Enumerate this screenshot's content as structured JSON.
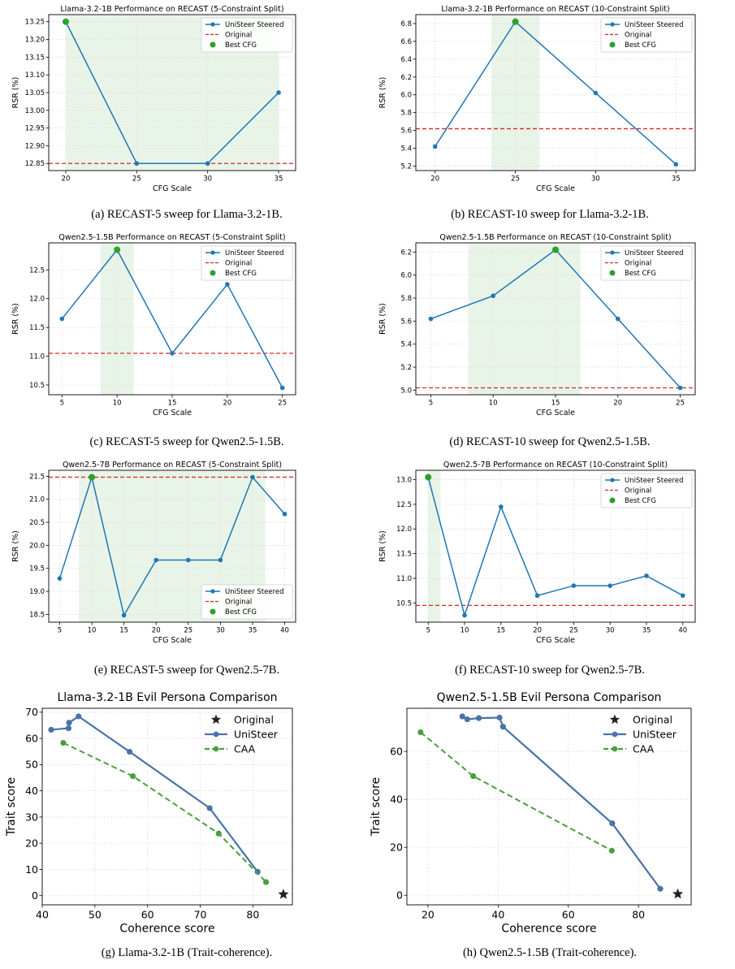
{
  "colors": {
    "unisteer": "#1f77b4",
    "original": "#d62728",
    "best": "#2ca02c",
    "band": "#e8f4e8",
    "persona_unisteer": "#4a73a8",
    "persona_caa": "#4a9e3c"
  },
  "captions": [
    "(a) RECAST-5 sweep for Llama-3.2-1B.",
    "(b) RECAST-10 sweep for Llama-3.2-1B.",
    "(c) RECAST-5 sweep for Qwen2.5-1.5B.",
    "(d) RECAST-10 sweep for Qwen2.5-1.5B.",
    "(e) RECAST-5 sweep for Qwen2.5-7B.",
    "(f) RECAST-10 sweep for Qwen2.5-7B.",
    "(g) Llama-3.2-1B (Trait-coherence).",
    "(h) Qwen2.5-1.5B (Trait-coherence)."
  ],
  "chart_data": [
    {
      "type": "line",
      "title": "Llama-3.2-1B Performance on RECAST (5-Constraint Split)",
      "xlabel": "CFG Scale",
      "ylabel": "RSR (%)",
      "x": [
        20,
        25,
        30,
        35
      ],
      "series": [
        {
          "name": "UniSteer Steered",
          "values": [
            13.25,
            12.85,
            12.85,
            13.05
          ]
        }
      ],
      "original": 12.85,
      "original_label": "Original",
      "best": {
        "label": "Best CFG",
        "x": 20,
        "y": 13.25
      },
      "band": [
        20,
        35
      ],
      "xlim": [
        18.8,
        36.2
      ],
      "ylim": [
        12.83,
        13.27
      ],
      "xticks": [
        20,
        25,
        30,
        35
      ],
      "yticks": [
        "12.85",
        "12.90",
        "12.95",
        "13.00",
        "13.05",
        "13.10",
        "13.15",
        "13.20",
        "13.25"
      ],
      "legend": "top-right",
      "grid": true
    },
    {
      "type": "line",
      "title": "Llama-3.2-1B Performance on RECAST (10-Constraint Split)",
      "xlabel": "CFG Scale",
      "ylabel": "RSR (%)",
      "x": [
        20,
        25,
        30,
        35
      ],
      "series": [
        {
          "name": "UniSteer Steered",
          "values": [
            5.42,
            6.82,
            6.02,
            5.22
          ]
        }
      ],
      "original": 5.62,
      "original_label": "Original",
      "best": {
        "label": "Best CFG",
        "x": 25,
        "y": 6.82
      },
      "band": [
        23.5,
        26.5
      ],
      "xlim": [
        18.8,
        36.2
      ],
      "ylim": [
        5.15,
        6.9
      ],
      "xticks": [
        20,
        25,
        30,
        35
      ],
      "yticks": [
        "5.2",
        "5.4",
        "5.6",
        "5.8",
        "6.0",
        "6.2",
        "6.4",
        "6.6",
        "6.8"
      ],
      "legend": "top-right",
      "grid": true
    },
    {
      "type": "line",
      "title": "Qwen2.5-1.5B Performance on RECAST (5-Constraint Split)",
      "xlabel": "CFG Scale",
      "ylabel": "RSR (%)",
      "x": [
        5,
        10,
        15,
        20,
        25
      ],
      "series": [
        {
          "name": "UniSteer Steered",
          "values": [
            11.65,
            12.85,
            11.05,
            12.25,
            10.45
          ]
        }
      ],
      "original": 11.05,
      "original_label": "Original",
      "best": {
        "label": "Best CFG",
        "x": 10,
        "y": 12.85
      },
      "band": [
        8.5,
        11.5
      ],
      "xlim": [
        3.8,
        26.2
      ],
      "ylim": [
        10.33,
        12.97
      ],
      "xticks": [
        5,
        10,
        15,
        20,
        25
      ],
      "yticks": [
        "10.5",
        "11.0",
        "11.5",
        "12.0",
        "12.5"
      ],
      "legend": "top-right",
      "grid": true
    },
    {
      "type": "line",
      "title": "Qwen2.5-1.5B Performance on RECAST (10-Constraint Split)",
      "xlabel": "CFG Scale",
      "ylabel": "RSR (%)",
      "x": [
        5,
        10,
        15,
        20,
        25
      ],
      "series": [
        {
          "name": "UniSteer Steered",
          "values": [
            5.62,
            5.82,
            6.22,
            5.62,
            5.02
          ]
        }
      ],
      "original": 5.02,
      "original_label": "Original",
      "best": {
        "label": "Best CFG",
        "x": 15,
        "y": 6.22
      },
      "band": [
        8,
        17
      ],
      "xlim": [
        3.8,
        26.2
      ],
      "ylim": [
        4.96,
        6.28
      ],
      "xticks": [
        5,
        10,
        15,
        20,
        25
      ],
      "yticks": [
        "5.0",
        "5.2",
        "5.4",
        "5.6",
        "5.8",
        "6.0",
        "6.2"
      ],
      "legend": "top-right",
      "grid": true
    },
    {
      "type": "line",
      "title": "Qwen2.5-7B Performance on RECAST (5-Constraint Split)",
      "xlabel": "CFG Scale",
      "ylabel": "RSR (%)",
      "x": [
        5,
        10,
        15,
        20,
        25,
        30,
        35,
        40
      ],
      "series": [
        {
          "name": "UniSteer Steered",
          "values": [
            19.28,
            21.48,
            18.48,
            19.68,
            19.68,
            19.68,
            21.48,
            20.68
          ]
        }
      ],
      "original": 21.48,
      "original_label": "Original",
      "best": {
        "label": "Best CFG",
        "x": 10,
        "y": 21.48
      },
      "band": [
        8,
        37
      ],
      "xlim": [
        3.3,
        41.7
      ],
      "ylim": [
        18.33,
        21.63
      ],
      "xticks": [
        5,
        10,
        15,
        20,
        25,
        30,
        35,
        40
      ],
      "yticks": [
        "18.5",
        "19.0",
        "19.5",
        "20.0",
        "20.5",
        "21.0",
        "21.5"
      ],
      "legend": "bottom-right",
      "grid": true
    },
    {
      "type": "line",
      "title": "Qwen2.5-7B Performance on RECAST (10-Constraint Split)",
      "xlabel": "CFG Scale",
      "ylabel": "RSR (%)",
      "x": [
        5,
        10,
        15,
        20,
        25,
        30,
        35,
        40
      ],
      "series": [
        {
          "name": "UniSteer Steered",
          "values": [
            13.05,
            10.25,
            12.45,
            10.65,
            10.85,
            10.85,
            11.05,
            10.65
          ]
        }
      ],
      "original": 10.45,
      "original_label": "Original",
      "best": {
        "label": "Best CFG",
        "x": 5,
        "y": 13.05
      },
      "band": [
        5,
        6.7
      ],
      "xlim": [
        3.3,
        41.7
      ],
      "ylim": [
        10.11,
        13.19
      ],
      "xticks": [
        5,
        10,
        15,
        20,
        25,
        30,
        35,
        40
      ],
      "yticks": [
        "10.5",
        "11.0",
        "11.5",
        "12.0",
        "12.5",
        "13.0"
      ],
      "legend": "top-right",
      "grid": true
    },
    {
      "type": "scatter",
      "title": "Llama-3.2-1B Evil Persona Comparison",
      "xlabel": "Coherence score",
      "ylabel": "Trait score",
      "series": [
        {
          "name": "Original",
          "marker": "star",
          "x": [
            85.8
          ],
          "y": [
            0.5
          ]
        },
        {
          "name": "UniSteer",
          "x": [
            41.7,
            45.0,
            45.1,
            46.9,
            56.6,
            71.8,
            80.9
          ],
          "y": [
            63.3,
            63.9,
            66.0,
            68.4,
            54.9,
            33.4,
            9.1
          ]
        },
        {
          "name": "CAA",
          "dashed": true,
          "x": [
            44.0,
            57.2,
            73.5,
            82.5
          ],
          "y": [
            58.3,
            45.6,
            23.7,
            5.2
          ]
        }
      ],
      "xlim": [
        40,
        87.5
      ],
      "ylim": [
        -3.5,
        71.5
      ],
      "xticks": [
        40,
        50,
        60,
        70,
        80
      ],
      "yticks": [
        0,
        10,
        20,
        30,
        40,
        50,
        60,
        70
      ],
      "legend": "top-right",
      "grid": true
    },
    {
      "type": "scatter",
      "title": "Qwen2.5-1.5B Evil Persona Comparison",
      "xlabel": "Coherence score",
      "ylabel": "Trait score",
      "series": [
        {
          "name": "Original",
          "marker": "star",
          "x": [
            91.2
          ],
          "y": [
            0.5
          ]
        },
        {
          "name": "UniSteer",
          "x": [
            29.8,
            31.2,
            34.5,
            40.4,
            41.4,
            72.5,
            86.2
          ],
          "y": [
            74.6,
            73.4,
            73.9,
            74.1,
            70.3,
            30.0,
            2.7
          ]
        },
        {
          "name": "CAA",
          "dashed": true,
          "x": [
            17.9,
            32.9,
            72.4
          ],
          "y": [
            68.0,
            49.7,
            18.6
          ]
        }
      ],
      "xlim": [
        14,
        95
      ],
      "ylim": [
        -4,
        78
      ],
      "xticks": [
        20,
        40,
        60,
        80
      ],
      "yticks": [
        0,
        20,
        40,
        60
      ],
      "legend": "top-right",
      "grid": true
    }
  ]
}
